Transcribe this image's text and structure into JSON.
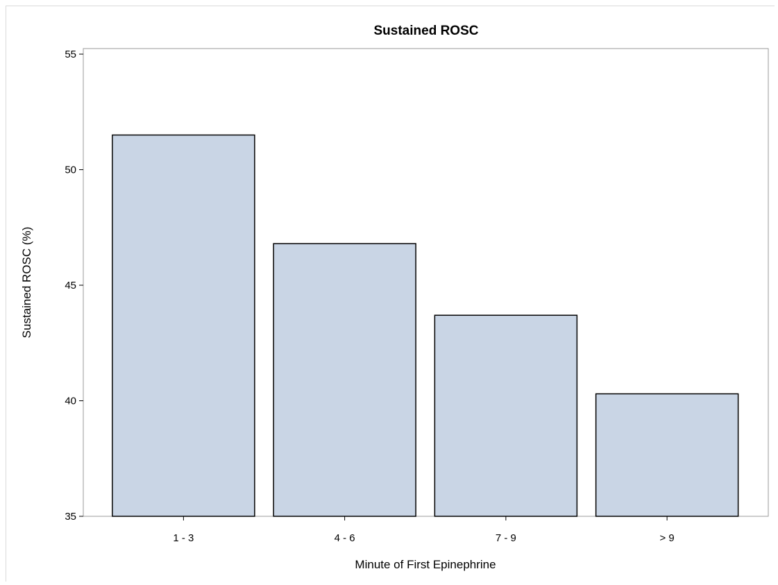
{
  "chart_data": {
    "type": "bar",
    "title": "Sustained ROSC",
    "xlabel": "Minute of First Epinephrine",
    "ylabel": "Sustained ROSC (%)",
    "categories": [
      "1 - 3",
      "4 - 6",
      "7 - 9",
      "> 9"
    ],
    "values": [
      51.5,
      46.8,
      43.7,
      40.3
    ],
    "ylim": [
      35,
      55
    ],
    "yticks": [
      "35",
      "40",
      "45",
      "50",
      "55"
    ],
    "grid": false,
    "bar_color": "#c9d5e5",
    "bar_edge_color": "#000000"
  }
}
